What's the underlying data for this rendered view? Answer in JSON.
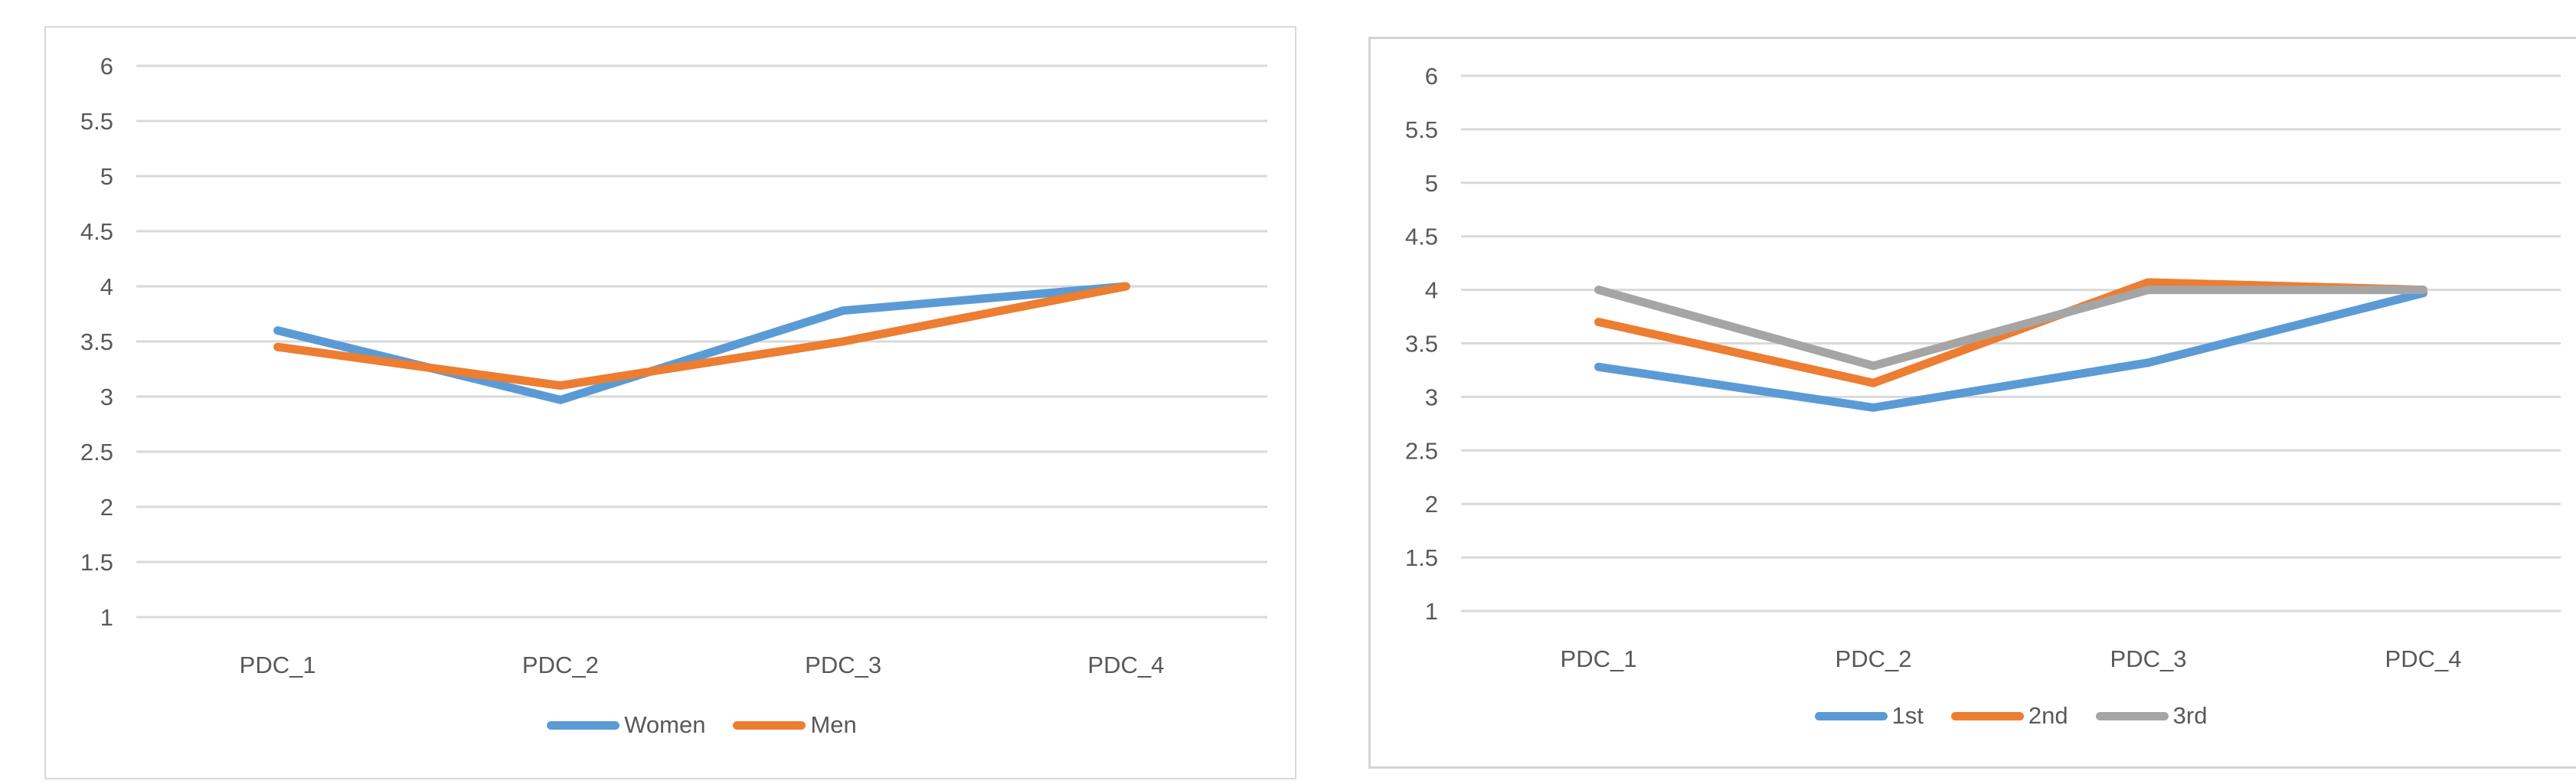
{
  "page": {
    "background": "#FFFFFF",
    "card_border_color": "#D9D9D9",
    "gridline_color": "#D9D9D9",
    "axis_text_color": "#595959"
  },
  "chart_data": [
    {
      "type": "line",
      "title": "",
      "categories": [
        "PDC_1",
        "PDC_2",
        "PDC_3",
        "PDC_4"
      ],
      "series": [
        {
          "name": "Women",
          "color": "#5B9BD5",
          "values": [
            3.6,
            2.97,
            3.78,
            4.0
          ]
        },
        {
          "name": "Men",
          "color": "#ED7D31",
          "values": [
            3.45,
            3.1,
            3.5,
            4.0
          ]
        }
      ],
      "ylim": [
        1,
        6
      ],
      "yticks": [
        6,
        5.5,
        5,
        4.5,
        4,
        3.5,
        3,
        2.5,
        2,
        1.5,
        1
      ],
      "ytick_labels": [
        "6",
        "5.5",
        "5",
        "4.5",
        "4",
        "3.5",
        "3",
        "2.5",
        "2",
        "1.5",
        "1"
      ],
      "xlabel": "",
      "ylabel": "",
      "grid": true,
      "legend_position": "bottom"
    },
    {
      "type": "line",
      "title": "",
      "categories": [
        "PDC_1",
        "PDC_2",
        "PDC_3",
        "PDC_4"
      ],
      "series": [
        {
          "name": "1st",
          "color": "#5B9BD5",
          "values": [
            3.28,
            2.9,
            3.32,
            3.97
          ]
        },
        {
          "name": "2nd",
          "color": "#ED7D31",
          "values": [
            3.7,
            3.13,
            4.07,
            4.0
          ]
        },
        {
          "name": "3rd",
          "color": "#A5A5A5",
          "values": [
            4.0,
            3.29,
            4.0,
            4.0
          ]
        }
      ],
      "ylim": [
        1,
        6
      ],
      "yticks": [
        6,
        5.5,
        5,
        4.5,
        4,
        3.5,
        3,
        2.5,
        2,
        1.5,
        1
      ],
      "ytick_labels": [
        "6",
        "5.5",
        "5",
        "4.5",
        "4",
        "3.5",
        "3",
        "2.5",
        "2",
        "1.5",
        "1"
      ],
      "xlabel": "",
      "ylabel": "",
      "grid": true,
      "legend_position": "bottom"
    }
  ]
}
